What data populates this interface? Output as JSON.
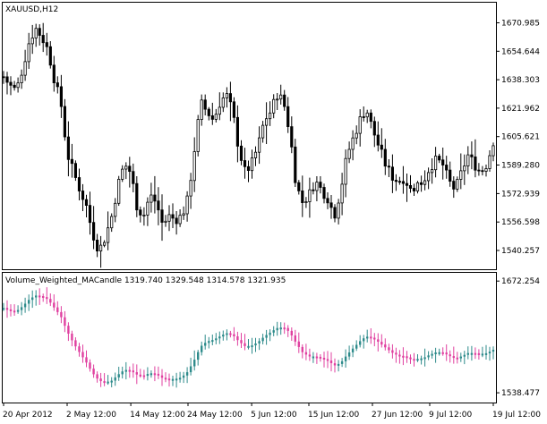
{
  "chart_data": [
    {
      "type": "candlestick",
      "title": "XAUUSD,H12",
      "y_ticks": [
        "1670.985",
        "1654.644",
        "1638.303",
        "1621.962",
        "1605.621",
        "1589.280",
        "1572.939",
        "1556.598",
        "1540.257"
      ],
      "y_tick_values": [
        1670.985,
        1654.644,
        1638.303,
        1621.962,
        1605.621,
        1589.28,
        1572.939,
        1556.598,
        1540.257
      ],
      "ylim": [
        1531.0,
        1681.0
      ],
      "candle_count": 137,
      "path": [
        [
          0,
          1640
        ],
        [
          3,
          1635
        ],
        [
          6,
          1632
        ],
        [
          9,
          1645
        ],
        [
          12,
          1660
        ],
        [
          15,
          1668
        ],
        [
          18,
          1663
        ],
        [
          21,
          1655
        ],
        [
          24,
          1638
        ],
        [
          27,
          1625
        ],
        [
          30,
          1596
        ],
        [
          33,
          1585
        ],
        [
          36,
          1575
        ],
        [
          39,
          1566
        ],
        [
          42,
          1550
        ],
        [
          45,
          1540
        ],
        [
          48,
          1548
        ],
        [
          51,
          1560
        ],
        [
          54,
          1578
        ],
        [
          57,
          1590
        ],
        [
          60,
          1585
        ],
        [
          63,
          1565
        ],
        [
          66,
          1560
        ],
        [
          69,
          1572
        ],
        [
          72,
          1568
        ],
        [
          75,
          1555
        ],
        [
          78,
          1560
        ],
        [
          81,
          1558
        ],
        [
          84,
          1560
        ],
        [
          87,
          1570
        ],
        [
          90,
          1598
        ],
        [
          93,
          1625
        ],
        [
          96,
          1620
        ],
        [
          99,
          1615
        ],
        [
          102,
          1625
        ],
        [
          105,
          1630
        ],
        [
          108,
          1620
        ],
        [
          111,
          1598
        ],
        [
          114,
          1585
        ],
        [
          117,
          1590
        ],
        [
          120,
          1600
        ],
        [
          123,
          1615
        ],
        [
          126,
          1620
        ],
        [
          129,
          1630
        ],
        [
          132,
          1626
        ],
        [
          135,
          1608
        ],
        [
          138,
          1578
        ],
        [
          141,
          1568
        ],
        [
          144,
          1572
        ],
        [
          147,
          1580
        ],
        [
          150,
          1575
        ],
        [
          153,
          1570
        ],
        [
          156,
          1560
        ],
        [
          159,
          1575
        ],
        [
          162,
          1595
        ],
        [
          165,
          1605
        ],
        [
          168,
          1615
        ],
        [
          171,
          1622
        ],
        [
          174,
          1610
        ],
        [
          177,
          1600
        ],
        [
          180,
          1590
        ],
        [
          183,
          1583
        ],
        [
          186,
          1580
        ],
        [
          189,
          1582
        ],
        [
          192,
          1575
        ],
        [
          195,
          1578
        ],
        [
          198,
          1580
        ],
        [
          201,
          1588
        ],
        [
          204,
          1592
        ],
        [
          207,
          1590
        ],
        [
          210,
          1580
        ],
        [
          213,
          1575
        ],
        [
          216,
          1585
        ],
        [
          219,
          1595
        ],
        [
          222,
          1590
        ],
        [
          225,
          1585
        ],
        [
          228,
          1590
        ],
        [
          231,
          1603
        ]
      ]
    },
    {
      "type": "colored_candles",
      "title": "Volume_Weighted_MACandle 1319.740 1329.548 1314.578 1321.935",
      "y_ticks": [
        "1672.254",
        "1538.477"
      ],
      "y_tick_values": [
        1672.254,
        1538.477
      ],
      "ylim": [
        1530.0,
        1680.0
      ],
      "candle_count": 137,
      "path": [
        [
          0,
          1640
        ],
        [
          3,
          1637
        ],
        [
          6,
          1636
        ],
        [
          9,
          1642
        ],
        [
          12,
          1650
        ],
        [
          15,
          1655
        ],
        [
          18,
          1654
        ],
        [
          21,
          1650
        ],
        [
          24,
          1640
        ],
        [
          27,
          1630
        ],
        [
          30,
          1612
        ],
        [
          33,
          1598
        ],
        [
          36,
          1586
        ],
        [
          39,
          1575
        ],
        [
          42,
          1562
        ],
        [
          45,
          1553
        ],
        [
          48,
          1551
        ],
        [
          51,
          1553
        ],
        [
          54,
          1560
        ],
        [
          57,
          1566
        ],
        [
          60,
          1565
        ],
        [
          63,
          1560
        ],
        [
          66,
          1559
        ],
        [
          69,
          1562
        ],
        [
          72,
          1561
        ],
        [
          75,
          1556
        ],
        [
          78,
          1555
        ],
        [
          81,
          1555
        ],
        [
          84,
          1557
        ],
        [
          87,
          1564
        ],
        [
          90,
          1578
        ],
        [
          93,
          1594
        ],
        [
          96,
          1600
        ],
        [
          99,
          1602
        ],
        [
          102,
          1606
        ],
        [
          105,
          1610
        ],
        [
          108,
          1608
        ],
        [
          111,
          1600
        ],
        [
          114,
          1594
        ],
        [
          117,
          1595
        ],
        [
          120,
          1599
        ],
        [
          123,
          1606
        ],
        [
          126,
          1611
        ],
        [
          129,
          1616
        ],
        [
          132,
          1617
        ],
        [
          135,
          1611
        ],
        [
          138,
          1598
        ],
        [
          141,
          1587
        ],
        [
          144,
          1582
        ],
        [
          147,
          1582
        ],
        [
          150,
          1580
        ],
        [
          153,
          1577
        ],
        [
          156,
          1571
        ],
        [
          159,
          1574
        ],
        [
          162,
          1584
        ],
        [
          165,
          1592
        ],
        [
          168,
          1600
        ],
        [
          171,
          1606
        ],
        [
          174,
          1604
        ],
        [
          177,
          1599
        ],
        [
          180,
          1593
        ],
        [
          183,
          1587
        ],
        [
          186,
          1583
        ],
        [
          189,
          1582
        ],
        [
          192,
          1579
        ],
        [
          195,
          1579
        ],
        [
          198,
          1580
        ],
        [
          201,
          1584
        ],
        [
          204,
          1587
        ],
        [
          207,
          1587
        ],
        [
          210,
          1583
        ],
        [
          213,
          1580
        ],
        [
          216,
          1582
        ],
        [
          219,
          1586
        ],
        [
          222,
          1586
        ],
        [
          225,
          1585
        ],
        [
          228,
          1586
        ],
        [
          231,
          1590
        ]
      ]
    }
  ],
  "x_ticks": [
    "20 Apr 2012",
    "2 May 12:00",
    "14 May 12:00",
    "24 May 12:00",
    "5 Jun 12:00",
    "15 Jun 12:00",
    "27 Jun 12:00",
    "9 Jul 12:00",
    "19 Jul 12:00"
  ],
  "x_tick_positions": [
    0,
    20,
    40,
    58,
    78,
    96,
    116,
    134,
    154
  ],
  "colors": {
    "up": "#2e8b8b",
    "down": "#e040a0",
    "frame": "#000000",
    "candle": "#000000"
  }
}
